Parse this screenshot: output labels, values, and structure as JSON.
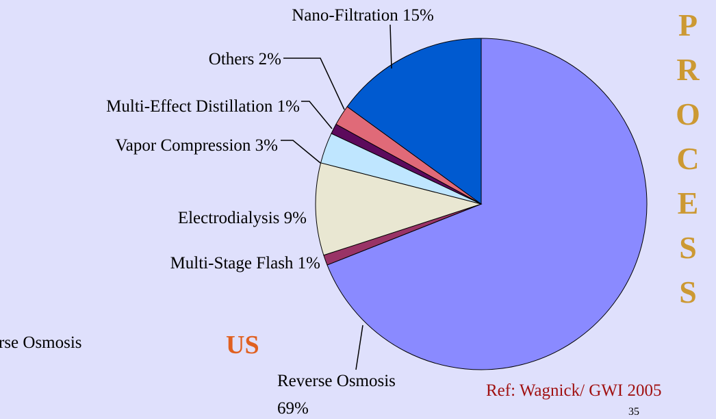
{
  "chart_data": {
    "type": "pie",
    "categories": [
      "Reverse Osmosis",
      "Multi-Stage Flash",
      "Electrodialysis",
      "Vapor Compression",
      "Multi-Effect Distillation",
      "Others",
      "Nano-Filtration"
    ],
    "values": [
      69,
      1,
      9,
      3,
      1,
      2,
      15
    ],
    "value_labels": [
      "69%",
      "1%",
      "9%",
      "3%",
      "1%",
      "2%",
      "15%"
    ],
    "colors": [
      "#8a8aff",
      "#993366",
      "#e9e7d2",
      "#bfe6ff",
      "#5c0a5c",
      "#e06a78",
      "#005ad0"
    ],
    "start_angle": 0,
    "direction": "clockwise",
    "side_title": "PROCESS",
    "region": "US",
    "reference": "Ref: Wagnick/ GWI 2005",
    "page_number": "35",
    "fragment": "rse Osmosis"
  }
}
